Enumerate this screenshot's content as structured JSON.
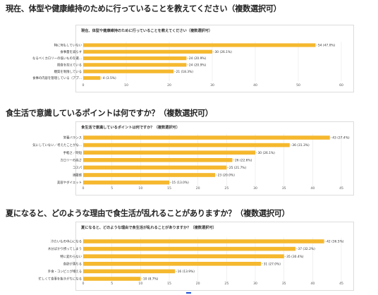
{
  "questions": [
    {
      "title": "現在、体型や健康維持のために行っていることを教えてください（複数選択可）"
    },
    {
      "title": "食生活で意識しているポイントは何ですか？（複数選択可）"
    },
    {
      "title": "夏になると、どのような理由で食生活が乱れることがありますか？（複数選択可）"
    }
  ],
  "bar_color": "#f5b82e",
  "chart_data": [
    {
      "type": "bar",
      "orientation": "horizontal",
      "title": "現在、体型や健康維持のために行っていることを教えてください（複数選択可）",
      "categories": [
        "特に何もしていない",
        "食事量を減らす",
        "なるべくカロリーの低いものを選...",
        "間食を控えている",
        "糖質を制限している",
        "食事の内容を管理している（アプ..."
      ],
      "values": [
        54,
        30,
        24,
        24,
        21,
        4
      ],
      "data_labels": [
        "54 (47.0%)",
        "30 (26.1%)",
        "24 (20.9%)",
        "24 (20.9%)",
        "21 (18.3%)",
        "4 (3.5%)"
      ],
      "xlim": [
        0,
        60
      ],
      "xticks": [
        "0",
        "10",
        "20",
        "30",
        "40",
        "50",
        "60"
      ],
      "grid": true
    },
    {
      "type": "bar",
      "orientation": "horizontal",
      "title": "食生活で意識しているポイントは何ですか？（複数選択可）",
      "categories": [
        "栄養バランス",
        "気にしていない／考えたことがな...",
        "手軽さ／時短",
        "カロリーの高さ",
        "コスパ",
        "満腹感",
        "美容やダイエット"
      ],
      "values": [
        43,
        36,
        30,
        26,
        25,
        23,
        15
      ],
      "data_labels": [
        "43 (37.4%)",
        "36 (31.3%)",
        "30 (26.1%)",
        "26 (22.6%)",
        "25 (21.7%)",
        "23 (20.0%)",
        "15 (13.0%)"
      ],
      "xlim": [
        0,
        45
      ],
      "xticks": [
        "0",
        "5",
        "10",
        "15",
        "20",
        "25",
        "30",
        "35",
        "40",
        "45"
      ],
      "grid": true
    },
    {
      "type": "bar",
      "orientation": "horizontal",
      "title": "夏になると、どのような理由で食生活が乱れることがありますか？（複数選択可）",
      "categories": [
        "冷たいもの中心になる",
        "水分ばかり摂ってしまう",
        "特に変わらない",
        "食欲が落ちる",
        "外食・コンビニが増える",
        "忙しくて食事を抜きがちになる"
      ],
      "values": [
        42,
        37,
        35,
        31,
        16,
        10
      ],
      "data_labels": [
        "42 (36.5%)",
        "37 (32.2%)",
        "35 (30.4%)",
        "31 (27.0%)",
        "16 (13.9%)",
        "10 (8.7%)"
      ],
      "xlim": [
        0,
        45
      ],
      "xticks": [
        "0",
        "5",
        "10",
        "15",
        "20",
        "25",
        "30",
        "35",
        "40",
        "45"
      ],
      "grid": true
    }
  ]
}
